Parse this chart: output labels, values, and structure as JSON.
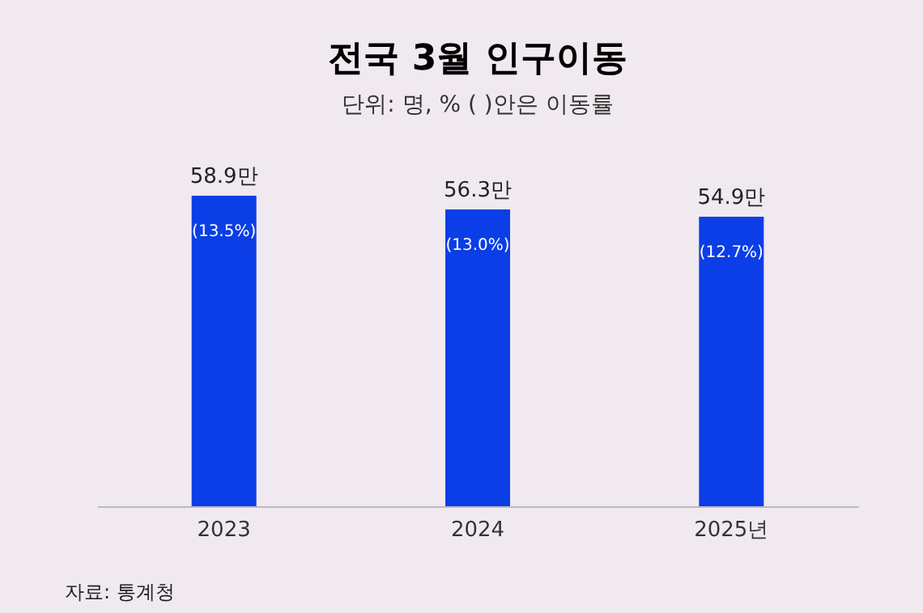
{
  "chart_data": {
    "type": "bar",
    "title": "전국 3월 인구이동",
    "subtitle": "단위: 명, % (     )안은 이동률",
    "categories": [
      "2023",
      "2024",
      "2025년"
    ],
    "values": [
      58.9,
      56.3,
      54.9
    ],
    "color": "#0b3ee6",
    "value_labels": [
      "58.9만",
      "56.3만",
      "54.9만"
    ],
    "annotations": [
      {
        "text": "(13.5%)",
        "x": "2023",
        "y": 58.9
      },
      {
        "text": "(13.0%)",
        "x": "2024",
        "y": 56.3
      },
      {
        "text": "(12.7%)",
        "x": "2025년",
        "y": 54.9
      },
      "자료: 통계청"
    ]
  }
}
